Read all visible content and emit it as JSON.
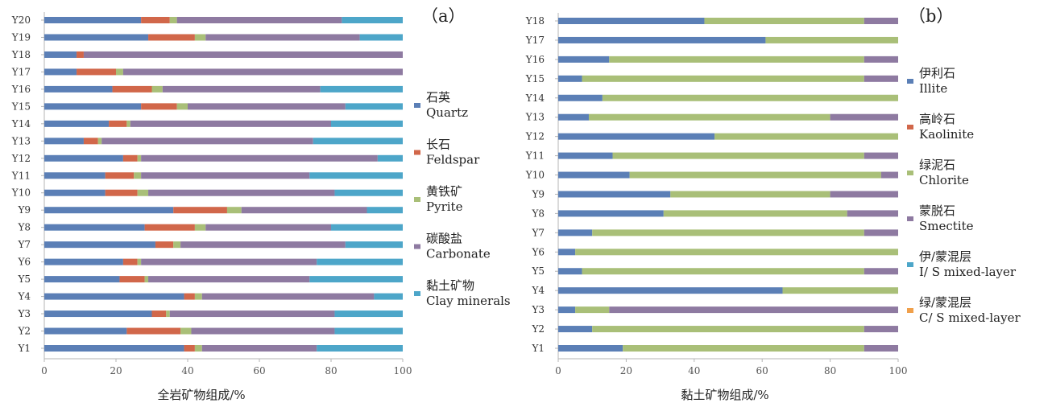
{
  "colors": {
    "quartz": "#5b7fb6",
    "feldspar": "#d1674a",
    "pyrite": "#a9bf78",
    "carbonate": "#8e7aa1",
    "clay": "#4da6c9",
    "illite": "#5b7fb6",
    "kaolinite": "#d1674a",
    "chlorite": "#a9bf78",
    "smectite": "#8e7aa1",
    "is_mixed": "#4da6c9",
    "cs_mixed": "#f0a04b"
  },
  "chart_data": [
    {
      "type": "bar",
      "orientation": "horizontal",
      "stacked": true,
      "panel_label": "（a）",
      "xlabel": "全岩矿物组成/%",
      "xlim": [
        0,
        100
      ],
      "xticks": [
        "0",
        "20",
        "40",
        "60",
        "80",
        "100"
      ],
      "categories": [
        "Y1",
        "Y2",
        "Y3",
        "Y4",
        "Y5",
        "Y6",
        "Y7",
        "Y8",
        "Y9",
        "Y10",
        "Y11",
        "Y12",
        "Y13",
        "Y14",
        "Y15",
        "Y16",
        "Y17",
        "Y18",
        "Y19",
        "Y20"
      ],
      "legend_position": "right",
      "series": [
        {
          "key": "quartz",
          "name": "石英",
          "name_en": "Quartz",
          "values": [
            39,
            23,
            30,
            39,
            21,
            22,
            31,
            28,
            36,
            17,
            17,
            22,
            11,
            18,
            27,
            19,
            9,
            9,
            29,
            27
          ]
        },
        {
          "key": "feldspar",
          "name": "长石",
          "name_en": "Feldspar",
          "values": [
            3,
            15,
            4,
            3,
            7,
            4,
            5,
            14,
            15,
            9,
            8,
            4,
            4,
            5,
            10,
            11,
            11,
            2,
            13,
            8
          ]
        },
        {
          "key": "pyrite",
          "name": "黄铁矿",
          "name_en": "Pyrite",
          "values": [
            2,
            3,
            1,
            2,
            1,
            1,
            2,
            3,
            4,
            3,
            2,
            1,
            1,
            1,
            3,
            3,
            2,
            0,
            3,
            2
          ]
        },
        {
          "key": "carbonate",
          "name": "碳酸盐",
          "name_en": "Carbonate",
          "values": [
            32,
            40,
            46,
            48,
            45,
            49,
            46,
            35,
            35,
            52,
            47,
            66,
            59,
            56,
            44,
            44,
            78,
            89,
            43,
            46
          ]
        },
        {
          "key": "clay",
          "name": "黏土矿物",
          "name_en": "Clay minerals",
          "values": [
            24,
            19,
            19,
            8,
            26,
            24,
            16,
            20,
            10,
            19,
            26,
            7,
            25,
            20,
            16,
            23,
            0,
            0,
            12,
            17
          ]
        }
      ]
    },
    {
      "type": "bar",
      "orientation": "horizontal",
      "stacked": true,
      "panel_label": "（b）",
      "xlabel": "黏土矿物组成/%",
      "xlim": [
        0,
        100
      ],
      "xticks": [
        "0",
        "20",
        "40",
        "60",
        "80",
        "100"
      ],
      "categories": [
        "Y1",
        "Y2",
        "Y3",
        "Y4",
        "Y5",
        "Y6",
        "Y7",
        "Y8",
        "Y9",
        "Y10",
        "Y11",
        "Y12",
        "Y13",
        "Y14",
        "Y15",
        "Y16",
        "Y17",
        "Y18"
      ],
      "legend_position": "right",
      "series": [
        {
          "key": "illite",
          "name": "伊利石",
          "name_en": "Illite",
          "values": [
            19,
            10,
            5,
            66,
            7,
            5,
            10,
            31,
            33,
            21,
            16,
            46,
            9,
            13,
            7,
            15,
            61,
            43
          ]
        },
        {
          "key": "kaolinite",
          "name": "高岭石",
          "name_en": "Kaolinite",
          "values": [
            0,
            0,
            0,
            0,
            0,
            0,
            0,
            0,
            0,
            0,
            0,
            0,
            0,
            0,
            0,
            0,
            0,
            0
          ]
        },
        {
          "key": "chlorite",
          "name": "绿泥石",
          "name_en": "Chlorite",
          "values": [
            71,
            80,
            10,
            34,
            83,
            95,
            80,
            54,
            47,
            74,
            74,
            54,
            71,
            87,
            83,
            75,
            39,
            47
          ]
        },
        {
          "key": "smectite",
          "name": "蒙脱石",
          "name_en": "Smectite",
          "values": [
            10,
            10,
            85,
            0,
            10,
            0,
            10,
            15,
            20,
            5,
            10,
            0,
            20,
            0,
            10,
            10,
            0,
            10
          ]
        },
        {
          "key": "is_mixed",
          "name": "伊/蒙混层",
          "name_en": "I/ S mixed-layer",
          "values": [
            0,
            0,
            0,
            0,
            0,
            0,
            0,
            0,
            0,
            0,
            0,
            0,
            0,
            0,
            0,
            0,
            0,
            0
          ]
        },
        {
          "key": "cs_mixed",
          "name": "绿/蒙混层",
          "name_en": "C/ S mixed-layer",
          "values": [
            0,
            0,
            0,
            0,
            0,
            0,
            0,
            0,
            0,
            0,
            0,
            0,
            0,
            0,
            0,
            0,
            0,
            0
          ]
        }
      ]
    }
  ]
}
